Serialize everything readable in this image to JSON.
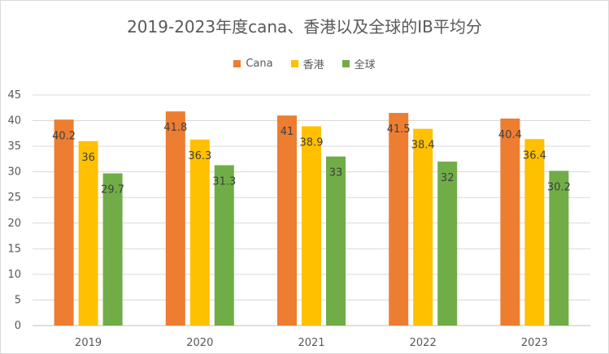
{
  "chart_data": {
    "type": "bar",
    "title": "2019-2023年度cana、香港以及全球的IB平均分",
    "categories": [
      "2019",
      "2020",
      "2021",
      "2022",
      "2023"
    ],
    "series": [
      {
        "name": "Cana",
        "color": "#ED7D31",
        "values": [
          40.2,
          41.8,
          41,
          41.5,
          40.4
        ]
      },
      {
        "name": "香港",
        "color": "#FFC000",
        "values": [
          36,
          36.3,
          38.9,
          38.4,
          36.4
        ]
      },
      {
        "name": "全球",
        "color": "#70AD47",
        "values": [
          29.7,
          31.3,
          33,
          32,
          30.2
        ]
      }
    ],
    "ylim": [
      0,
      45
    ],
    "yticks": [
      0,
      5,
      10,
      15,
      20,
      25,
      30,
      35,
      40,
      45
    ],
    "grid": true,
    "legend_position": "top"
  }
}
